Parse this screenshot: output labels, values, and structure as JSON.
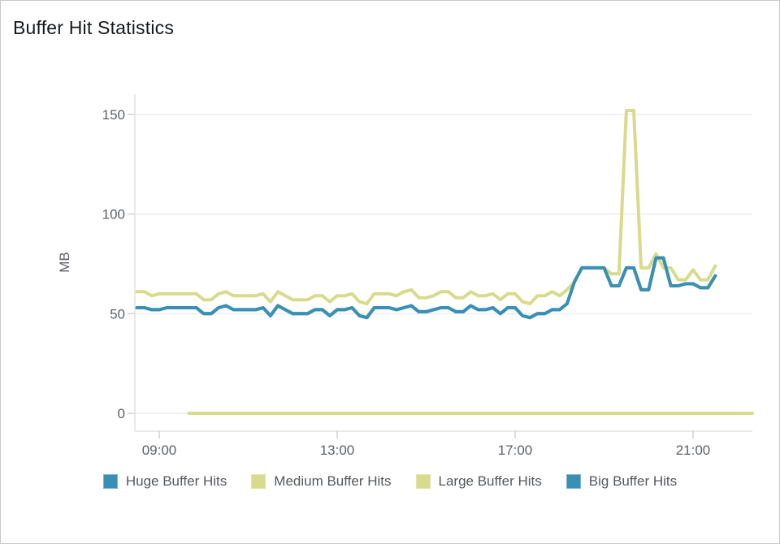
{
  "title": "Buffer Hit Statistics",
  "colors": {
    "series_blue": "#3A8FB4",
    "series_yellow": "#D8DA8C",
    "gridline": "#ECECEC",
    "axis_line": "#E2E2E2",
    "tick_mark": "#D0D0D0",
    "tick_text": "#5D6167",
    "title_text": "#16191D",
    "legend_text": "#54585E"
  },
  "chart_data": {
    "type": "line",
    "title": "Buffer Hit Statistics",
    "xlabel": "",
    "ylabel": "MB",
    "grid": "horizontal",
    "legend_position": "bottom",
    "y_axis": {
      "label": "MB",
      "ticks": [
        0,
        50,
        100,
        150
      ],
      "ylim": [
        0,
        160
      ]
    },
    "x_axis": {
      "ticks": [
        "09:00",
        "13:00",
        "17:00",
        "21:00"
      ],
      "range": [
        "08:20",
        "22:20"
      ]
    },
    "series": [
      {
        "name": "Huge Buffer Hits",
        "color": "#3A8FB4",
        "x_start": "08:30",
        "x_step_minutes": 10,
        "values": [
          53,
          53,
          52,
          52,
          53,
          53,
          53,
          53,
          53,
          50,
          50,
          53,
          54,
          52,
          52,
          52,
          52,
          53,
          49,
          54,
          52,
          50,
          50,
          50,
          52,
          52,
          49,
          52,
          52,
          53,
          49,
          48,
          53,
          53,
          53,
          52,
          53,
          54,
          51,
          51,
          52,
          53,
          53,
          51,
          51,
          54,
          52,
          52,
          53,
          50,
          53,
          53,
          49,
          48,
          50,
          50,
          52,
          52,
          55,
          66,
          73,
          73,
          73,
          73,
          64,
          64,
          73,
          73,
          62,
          62,
          78,
          78,
          64,
          64,
          65,
          65,
          63,
          63,
          69
        ]
      },
      {
        "name": "Medium Buffer Hits",
        "color": "#D8DA8C",
        "x_start": "08:30",
        "x_step_minutes": 10,
        "values": [
          61,
          61,
          59,
          60,
          60,
          60,
          60,
          60,
          60,
          57,
          57,
          60,
          61,
          59,
          59,
          59,
          59,
          60,
          56,
          61,
          59,
          57,
          57,
          57,
          59,
          59,
          56,
          59,
          59,
          60,
          56,
          55,
          60,
          60,
          60,
          59,
          61,
          62,
          58,
          58,
          59,
          61,
          61,
          58,
          58,
          61,
          59,
          59,
          60,
          57,
          60,
          60,
          56,
          55,
          59,
          59,
          61,
          59,
          62,
          66,
          73,
          73,
          73,
          73,
          70,
          70,
          152,
          152,
          73,
          73,
          80,
          73,
          73,
          67,
          67,
          72,
          67,
          67,
          74
        ],
        "note": "peak spike of 152 MB at about 19:30-19:40"
      },
      {
        "name": "Large Buffer Hits",
        "color": "#D8DA8C",
        "x_start": "09:40",
        "x_step_minutes": 760,
        "values": [
          0,
          0
        ],
        "note": "constant 0 MB from 09:40 to 22:20"
      },
      {
        "name": "Big Buffer Hits",
        "color": "#3A8FB4",
        "x_start": "08:30",
        "x_step_minutes": 10,
        "values": [
          53,
          53,
          52,
          52,
          53,
          53,
          53,
          53,
          53,
          50,
          50,
          53,
          54,
          52,
          52,
          52,
          52,
          53,
          49,
          54,
          52,
          50,
          50,
          50,
          52,
          52,
          49,
          52,
          52,
          53,
          49,
          48,
          53,
          53,
          53,
          52,
          53,
          54,
          51,
          51,
          52,
          53,
          53,
          51,
          51,
          54,
          52,
          52,
          53,
          50,
          53,
          53,
          49,
          48,
          50,
          50,
          52,
          52,
          55,
          66,
          73,
          73,
          73,
          73,
          64,
          64,
          73,
          73,
          62,
          62,
          78,
          78,
          64,
          64,
          65,
          65,
          63,
          63,
          69
        ],
        "note": "overlaps the Huge Buffer Hits line exactly (hidden behind it)"
      }
    ]
  },
  "legend": {
    "items": [
      {
        "label": "Huge Buffer Hits",
        "color": "#3A8FB4",
        "border": "#7FB7D2"
      },
      {
        "label": "Medium Buffer Hits",
        "color": "#D8DA8C",
        "border": "#E2E4AC"
      },
      {
        "label": "Large Buffer Hits",
        "color": "#D8DA8C",
        "border": "#E2E4AC"
      },
      {
        "label": "Big Buffer Hits",
        "color": "#3A8FB4",
        "border": "#7FB7D2"
      }
    ]
  }
}
